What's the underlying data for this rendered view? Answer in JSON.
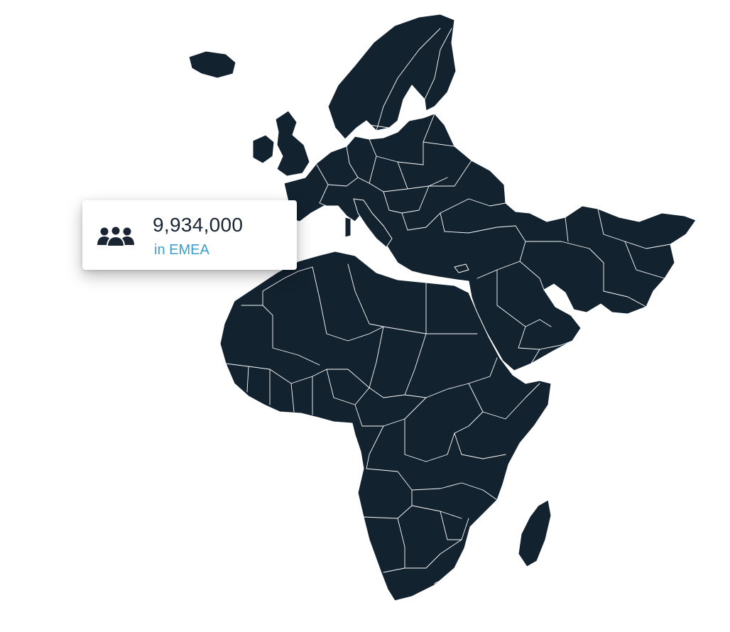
{
  "map": {
    "region": "EMEA",
    "land_color": "#12222f",
    "border_color": "#ffffff"
  },
  "stat_card": {
    "icon": "users-group-icon",
    "value": "9,934,000",
    "label": "in EMEA",
    "value_color": "#1a2533",
    "label_color": "#3a9ec9"
  }
}
